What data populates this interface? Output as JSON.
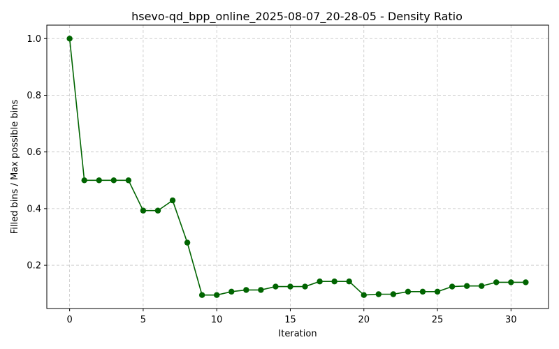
{
  "chart_data": {
    "type": "line",
    "title": "hsevo-qd_bpp_online_2025-08-07_20-28-05 - Density Ratio",
    "xlabel": "Iteration",
    "ylabel": "Filled bins / Max possible bins",
    "xlim": [
      -1.55,
      32.55
    ],
    "ylim": [
      0.0475,
      1.0475
    ],
    "xticks": [
      0,
      5,
      10,
      15,
      20,
      25,
      30
    ],
    "xtick_labels": [
      "0",
      "5",
      "10",
      "15",
      "20",
      "25",
      "30"
    ],
    "yticks": [
      0.2,
      0.4,
      0.6,
      0.8,
      1.0
    ],
    "ytick_labels": [
      "0.2",
      "0.4",
      "0.6",
      "0.8",
      "1.0"
    ],
    "grid": true,
    "color": "#006400",
    "series": [
      {
        "x": [
          0,
          1,
          2,
          3,
          4,
          5,
          6,
          7,
          8,
          9,
          10,
          11,
          12,
          13,
          14,
          15,
          16,
          17,
          18,
          19,
          20,
          21,
          22,
          23,
          24,
          25,
          26,
          27,
          28,
          29,
          30,
          31
        ],
        "values": [
          1.0,
          0.5,
          0.5,
          0.5,
          0.5,
          0.393,
          0.393,
          0.429,
          0.28,
          0.095,
          0.095,
          0.107,
          0.113,
          0.113,
          0.125,
          0.125,
          0.125,
          0.143,
          0.143,
          0.143,
          0.095,
          0.098,
          0.098,
          0.107,
          0.107,
          0.107,
          0.125,
          0.127,
          0.127,
          0.14,
          0.14,
          0.14
        ]
      }
    ]
  }
}
